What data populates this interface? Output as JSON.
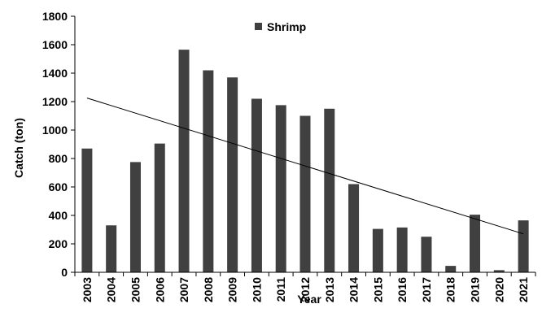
{
  "chart_data": {
    "type": "bar",
    "title": "",
    "xlabel": "Year",
    "ylabel": "Catch (ton)",
    "ylim": [
      0,
      1800
    ],
    "yticks": [
      "0",
      "200",
      "400",
      "600",
      "800",
      "1000",
      "1200",
      "1400",
      "1600",
      "1800"
    ],
    "grid": false,
    "legend_position": "top-center",
    "bar_color": "#404040",
    "trendline_color": "#000000",
    "categories": [
      "2003",
      "2004",
      "2005",
      "2006",
      "2007",
      "2008",
      "2009",
      "2010",
      "2011",
      "2012",
      "2013",
      "2014",
      "2015",
      "2016",
      "2017",
      "2018",
      "2019",
      "2020",
      "2021"
    ],
    "series": [
      {
        "name": "Shrimp",
        "values": [
          870,
          330,
          775,
          905,
          1565,
          1420,
          1370,
          1220,
          1175,
          1100,
          1150,
          620,
          305,
          315,
          250,
          45,
          405,
          15,
          365
        ]
      }
    ],
    "trendline": {
      "type": "linear",
      "start_value": 1225,
      "end_value": 270
    }
  }
}
